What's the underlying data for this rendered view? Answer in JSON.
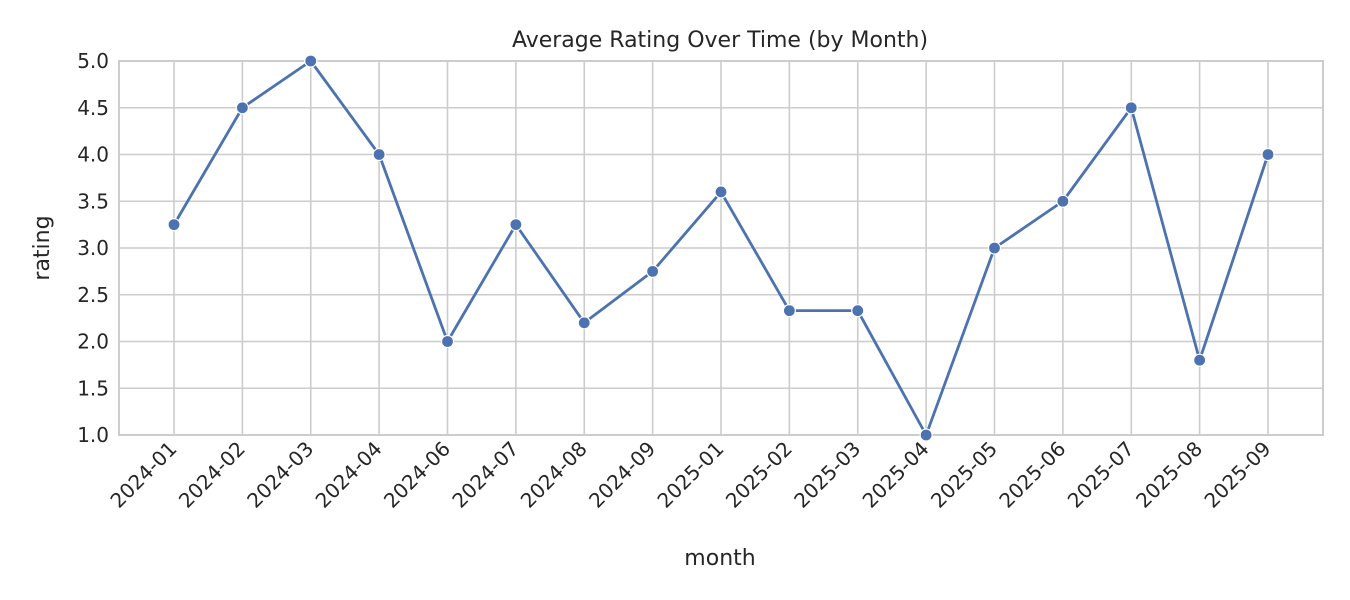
{
  "chart_data": {
    "type": "line",
    "title": "Average Rating Over Time (by Month)",
    "xlabel": "month",
    "ylabel": "rating",
    "categories": [
      "2024-01",
      "2024-02",
      "2024-03",
      "2024-04",
      "2024-06",
      "2024-07",
      "2024-08",
      "2024-09",
      "2025-01",
      "2025-02",
      "2025-03",
      "2025-04",
      "2025-05",
      "2025-06",
      "2025-07",
      "2025-08",
      "2025-09"
    ],
    "series": [
      {
        "values": [
          3.25,
          4.5,
          5.0,
          4.0,
          2.0,
          3.25,
          2.2,
          2.75,
          3.6,
          2.33,
          2.33,
          1.0,
          3.0,
          3.5,
          4.5,
          1.8,
          4.0
        ],
        "color": "#4c72b0",
        "marker": "circle"
      }
    ],
    "ylim": [
      1.0,
      5.0
    ],
    "yticks": [
      "1.0",
      "1.5",
      "2.0",
      "2.5",
      "3.0",
      "3.5",
      "4.0",
      "4.5",
      "5.0"
    ],
    "grid": true,
    "legend": "none"
  }
}
